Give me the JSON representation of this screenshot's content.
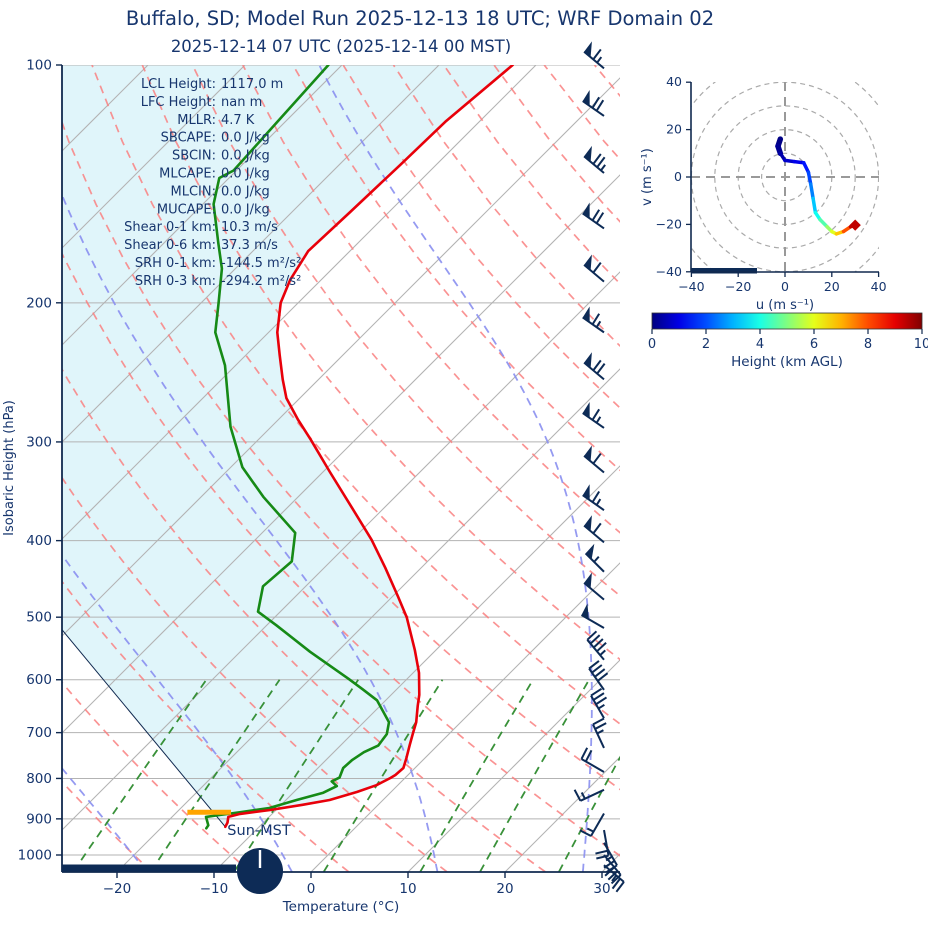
{
  "header": {
    "title": "Buffalo, SD; Model Run 2025-12-13 18 UTC; WRF Domain 02",
    "subtitle": "2025-12-14 07 UTC  (2025-12-14 00 MST)"
  },
  "colors": {
    "text_navy": "#17366e",
    "axis_navy": "#10294f",
    "temperature_red": "#e8000a",
    "dewpoint_green": "#168a16",
    "isotherm_gray": "#b3b3b3",
    "dry_adiabat_red": "#f98080",
    "moist_adiabat_blue": "#8a8ff0",
    "mixing_ratio_green": "#2e8b2e",
    "shade_cyan": "#e0f5fa",
    "barb_navy": "#0d2b56",
    "lcl_orange": "#ffa500",
    "ring_gray": "#aaaaaa"
  },
  "stats": [
    {
      "label": "LCL Height",
      "value": "1117.0 m"
    },
    {
      "label": "LFC Height",
      "value": "nan m"
    },
    {
      "label": "MLLR",
      "value": "4.7 K"
    },
    {
      "label": "SBCAPE",
      "value": "0.0 J/kg"
    },
    {
      "label": "SBCIN",
      "value": "0.0 J/kg"
    },
    {
      "label": "MLCAPE",
      "value": "0.0 J/kg"
    },
    {
      "label": "MLCIN",
      "value": "0.0 J/kg"
    },
    {
      "label": "MUCAPE",
      "value": "0.0 J/kg"
    },
    {
      "label": "Shear 0-1 km",
      "value": "10.3 m/s"
    },
    {
      "label": "Shear 0-6 km",
      "value": "37.3 m/s"
    },
    {
      "label": "SRH 0-1 km",
      "value": "-144.5 m²/s²"
    },
    {
      "label": "SRH 0-3 km",
      "value": "-294.2 m²/s²"
    }
  ],
  "skewt": {
    "xlabel": "Temperature (°C)",
    "ylabel": "Isobaric Height (hPa)",
    "x_ticks": [
      -20,
      -10,
      0,
      10,
      20,
      30
    ],
    "y_ticks": [
      100,
      200,
      300,
      400,
      500,
      600,
      700,
      800,
      900,
      1000
    ],
    "sun_label": "Sun-MST"
  },
  "chart_data": {
    "type": "skewt_log_p_sounding",
    "title": "Buffalo, SD; Model Run 2025-12-13 18 UTC; WRF Domain 02",
    "valid_time": "2025-12-14 07 UTC (2025-12-14 00 MST)",
    "pressure_axis_hPa": [
      100,
      1050
    ],
    "temperature_axis_C": [
      -25.7,
      31.9
    ],
    "temperature_profile": [
      [
        921,
        -13.5
      ],
      [
        910,
        -13.7
      ],
      [
        895,
        -14.2
      ],
      [
        887,
        -13.3
      ],
      [
        877,
        -10.6
      ],
      [
        864,
        -7.8
      ],
      [
        852,
        -5.5
      ],
      [
        832,
        -3.5
      ],
      [
        816,
        -2.2
      ],
      [
        799,
        -1.5
      ],
      [
        792,
        -1.3
      ],
      [
        776,
        -1.2
      ],
      [
        754,
        -1.9
      ],
      [
        726,
        -2.9
      ],
      [
        701,
        -3.8
      ],
      [
        679,
        -4.6
      ],
      [
        648,
        -6.1
      ],
      [
        627,
        -7.1
      ],
      [
        588,
        -9.4
      ],
      [
        550,
        -12.2
      ],
      [
        500,
        -16.4
      ],
      [
        471,
        -19.4
      ],
      [
        433,
        -23.7
      ],
      [
        399,
        -28.0
      ],
      [
        363,
        -33.4
      ],
      [
        328,
        -39.2
      ],
      [
        298,
        -44.6
      ],
      [
        281,
        -48.0
      ],
      [
        264,
        -51.4
      ],
      [
        250,
        -53.7
      ],
      [
        233,
        -56.5
      ],
      [
        218,
        -59.1
      ],
      [
        200,
        -61.8
      ],
      [
        187,
        -63.2
      ],
      [
        172,
        -64.3
      ],
      [
        153.5,
        -64.0
      ],
      [
        134,
        -63.7
      ],
      [
        118,
        -63.5
      ],
      [
        100,
        -62.4
      ]
    ],
    "dewpoint_profile": [
      [
        925,
        -15.3
      ],
      [
        917,
        -15.4
      ],
      [
        895,
        -16.5
      ],
      [
        890,
        -15.3
      ],
      [
        883,
        -13.5
      ],
      [
        872,
        -10.9
      ],
      [
        852,
        -8.9
      ],
      [
        834,
        -6.9
      ],
      [
        818,
        -6.2
      ],
      [
        807,
        -7.2
      ],
      [
        798,
        -6.8
      ],
      [
        776,
        -7.4
      ],
      [
        758,
        -7.3
      ],
      [
        741,
        -6.9
      ],
      [
        727,
        -6.1
      ],
      [
        703,
        -6.4
      ],
      [
        679,
        -7.4
      ],
      [
        637,
        -10.9
      ],
      [
        617,
        -13.5
      ],
      [
        598,
        -16.1
      ],
      [
        553,
        -22.8
      ],
      [
        512,
        -29.0
      ],
      [
        492,
        -32.3
      ],
      [
        457,
        -34.4
      ],
      [
        425,
        -34.0
      ],
      [
        391,
        -36.6
      ],
      [
        352,
        -43.6
      ],
      [
        323,
        -48.8
      ],
      [
        287,
        -54.2
      ],
      [
        240,
        -61.1
      ],
      [
        218,
        -65.5
      ],
      [
        200,
        -68.2
      ],
      [
        181,
        -71.4
      ],
      [
        168,
        -74.4
      ],
      [
        150,
        -78.9
      ],
      [
        139,
        -81.0
      ],
      [
        136,
        -80.3
      ],
      [
        100,
        -81.4
      ]
    ],
    "parcel_trace": [
      [
        921,
        -13.5
      ],
      [
        519,
        -50.6
      ]
    ],
    "lcl_marker": {
      "pressure_hPa": 888,
      "temp_from_C": -18.7,
      "temp_to_C": -14.2
    },
    "surface_bar": {
      "pressure_hPa": 1040,
      "temp_from_C": -25.7,
      "temp_to_C": -7.8
    },
    "wind_barbs": [
      [
        101,
        310,
        65
      ],
      [
        116,
        305,
        70
      ],
      [
        137,
        310,
        75
      ],
      [
        161,
        305,
        70
      ],
      [
        188,
        310,
        60
      ],
      [
        218,
        305,
        65
      ],
      [
        250,
        310,
        70
      ],
      [
        288,
        305,
        65
      ],
      [
        328,
        310,
        60
      ],
      [
        366,
        305,
        65
      ],
      [
        402,
        310,
        60
      ],
      [
        438,
        315,
        55
      ],
      [
        475,
        310,
        50
      ],
      [
        516,
        300,
        50
      ],
      [
        566,
        320,
        45
      ],
      [
        618,
        325,
        40
      ],
      [
        671,
        330,
        35
      ],
      [
        732,
        335,
        25
      ],
      [
        785,
        300,
        20
      ],
      [
        827,
        245,
        15
      ],
      [
        886,
        210,
        15
      ],
      [
        930,
        170,
        20
      ],
      [
        965,
        150,
        25
      ],
      [
        1000,
        140,
        30
      ],
      [
        1030,
        130,
        25
      ]
    ],
    "background": {
      "isotherms_C": [
        -100,
        -90,
        -80,
        -70,
        -60,
        -50,
        -40,
        -30,
        -20,
        -10,
        0,
        10,
        20,
        30,
        40
      ],
      "dry_adiabats_theta_C_start": -40,
      "dry_adiabats_theta_C_end": 180,
      "dry_adiabats_step": 10,
      "moist_adiabats_T1050_C": [
        -62,
        -47,
        -32,
        -17,
        -2,
        13,
        28,
        43
      ],
      "mixing_ratios_g_kg": [
        0.5,
        1,
        2,
        4,
        8,
        12,
        20
      ],
      "mixing_ratio_top_hPa": 600
    },
    "hodograph": {
      "xlabel": "u (m s⁻¹)",
      "ylabel": "v (m s⁻¹)",
      "x_ticks": [
        -40,
        -20,
        0,
        20,
        40
      ],
      "y_ticks": [
        -40,
        -20,
        0,
        20,
        40
      ],
      "ring_radii_ms": [
        10,
        20,
        30,
        40,
        50
      ],
      "trace_u_v_heightkm": [
        [
          -2,
          16,
          0
        ],
        [
          -3,
          13,
          0.1
        ],
        [
          -2,
          10,
          0.3
        ],
        [
          0,
          7,
          0.6
        ],
        [
          4,
          6.5,
          0.9
        ],
        [
          8,
          6,
          1.2
        ],
        [
          10,
          2,
          1.7
        ],
        [
          11,
          -3,
          2.2
        ],
        [
          12,
          -9,
          2.8
        ],
        [
          13,
          -15,
          3.6
        ],
        [
          15,
          -18,
          4.2
        ],
        [
          18,
          -21,
          4.9
        ],
        [
          20,
          -23,
          5.6
        ],
        [
          22,
          -24,
          6.3
        ],
        [
          25,
          -23,
          7.3
        ],
        [
          28,
          -21,
          8.6
        ],
        [
          30,
          -20.3,
          10
        ]
      ],
      "colorbar": {
        "label": "Height (km AGL)",
        "ticks": [
          0,
          2,
          4,
          6,
          8,
          10
        ],
        "range_km": [
          0,
          10
        ],
        "colormap": "jet"
      }
    }
  }
}
